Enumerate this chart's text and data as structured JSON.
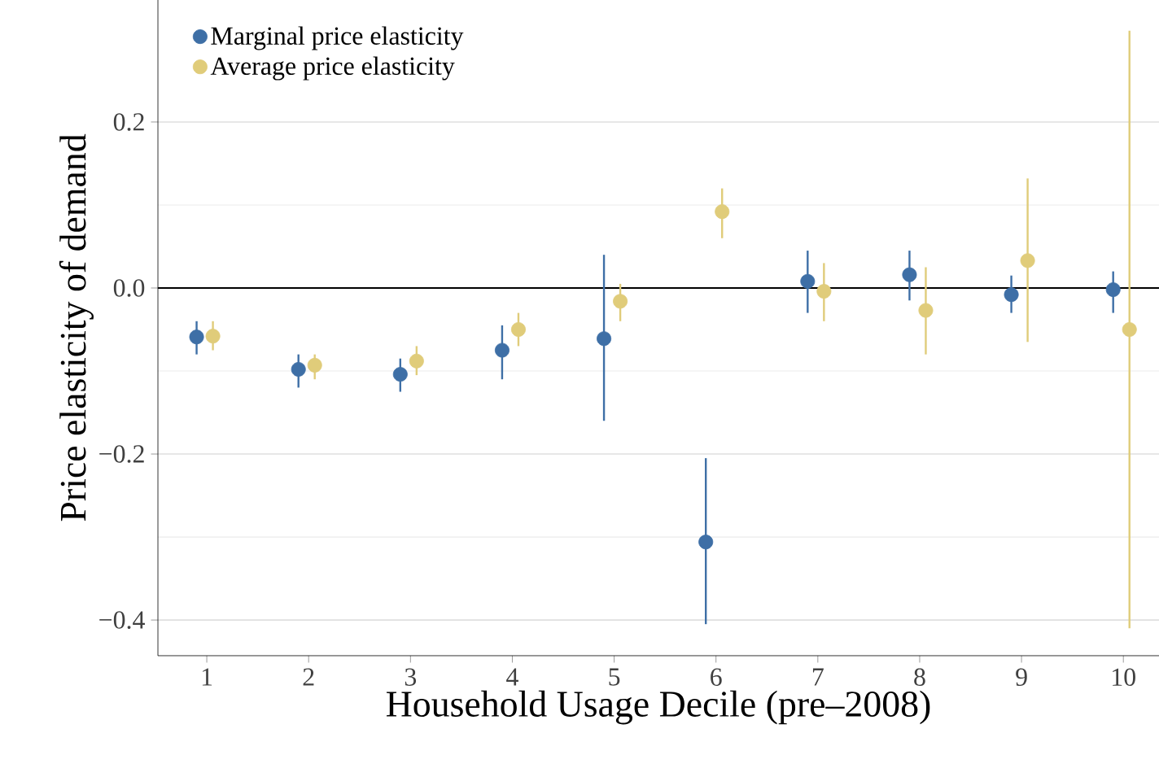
{
  "chart_data": {
    "type": "scatter",
    "xlabel": "Household Usage Decile (pre–2008)",
    "ylabel": "Price elasticity of demand",
    "xlim": [
      0.52,
      10.35
    ],
    "xticks": [
      1,
      2,
      3,
      4,
      5,
      6,
      7,
      8,
      9,
      10
    ],
    "ylim": [
      -0.443,
      0.347
    ],
    "yticks": [
      {
        "value": -0.4,
        "label": "−0.4"
      },
      {
        "value": -0.2,
        "label": "−0.2"
      },
      {
        "value": 0,
        "label": "0.0"
      },
      {
        "value": 0.2,
        "label": "0.2"
      }
    ],
    "grid": "y",
    "legend": "top left",
    "marker": "circle",
    "ref_lines": [
      {
        "axis": "y",
        "value": 0,
        "color": "#000000"
      }
    ],
    "series": [
      {
        "name": "Marginal price elasticity",
        "color": "#3e6fa6",
        "x": [
          0.9,
          1.9,
          2.9,
          3.9,
          4.9,
          5.9,
          6.9,
          7.9,
          8.9,
          9.9
        ],
        "values": [
          -0.059,
          -0.098,
          -0.104,
          -0.075,
          -0.061,
          -0.306,
          0.008,
          0.016,
          -0.008,
          -0.002
        ],
        "errors": [
          [
            -0.08,
            -0.04
          ],
          [
            -0.12,
            -0.08
          ],
          [
            -0.125,
            -0.085
          ],
          [
            -0.11,
            -0.045
          ],
          [
            -0.16,
            0.04
          ],
          [
            -0.405,
            -0.205
          ],
          [
            -0.03,
            0.045
          ],
          [
            -0.015,
            0.045
          ],
          [
            -0.03,
            0.015
          ],
          [
            -0.03,
            0.02
          ]
        ]
      },
      {
        "name": "Average price elasticity",
        "color": "#e0cc7a",
        "x": [
          1.06,
          2.06,
          3.06,
          4.06,
          5.06,
          6.06,
          7.06,
          8.06,
          9.06,
          10.06
        ],
        "values": [
          -0.058,
          -0.093,
          -0.088,
          -0.05,
          -0.016,
          0.092,
          -0.004,
          -0.027,
          0.033,
          -0.05
        ],
        "errors": [
          [
            -0.075,
            -0.04
          ],
          [
            -0.11,
            -0.08
          ],
          [
            -0.105,
            -0.07
          ],
          [
            -0.07,
            -0.03
          ],
          [
            -0.04,
            0.005
          ],
          [
            0.06,
            0.12
          ],
          [
            -0.04,
            0.03
          ],
          [
            -0.08,
            0.025
          ],
          [
            -0.065,
            0.132
          ],
          [
            -0.41,
            0.31
          ]
        ]
      }
    ]
  }
}
